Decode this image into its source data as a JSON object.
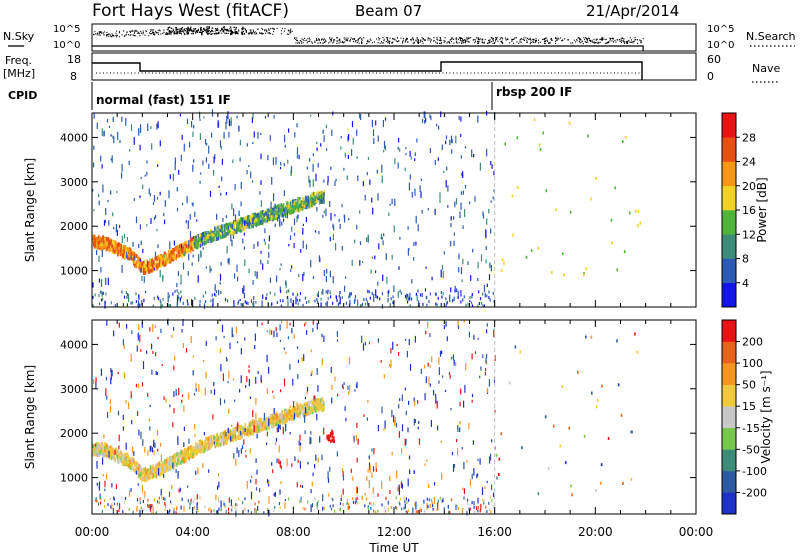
{
  "header": {
    "title": "Fort Hays West (fitACF)",
    "beam": "Beam 07",
    "date": "21/Apr/2014"
  },
  "top_panels": {
    "nsky": {
      "label": "N.Sky",
      "right_label": "N.Search",
      "ticks_left": [
        "10^5",
        "10^0"
      ],
      "ticks_right": [
        "10^5",
        "10^0"
      ]
    },
    "freq": {
      "label_line1": "Freq.",
      "label_line2": "[MHz]",
      "right_label": "Nave",
      "ticks_left": [
        "18",
        "8"
      ],
      "ticks_right": [
        "60",
        "0"
      ]
    },
    "cpid": {
      "label": "CPID",
      "modes": [
        {
          "name": "normal (fast) 151 IF",
          "start_hour": 0
        },
        {
          "name": "rbsp 200 IF",
          "start_hour": 16
        }
      ]
    }
  },
  "chart_data": [
    {
      "type": "heatmap",
      "name": "power",
      "ylabel": "Slant Range [km]",
      "xlabel": "",
      "yticks": [
        1000,
        2000,
        3000,
        4000
      ],
      "ylim": [
        180,
        4550
      ],
      "xlim": [
        0,
        24
      ],
      "colorbar": {
        "label": "Power [dB]",
        "ticks": [
          "4",
          "8",
          "12",
          "16",
          "20",
          "24",
          "28"
        ],
        "colors": [
          "#1414e6",
          "#2d5ab4",
          "#3c8c78",
          "#50b43c",
          "#f0d228",
          "#f59614",
          "#e65014",
          "#e61414"
        ]
      },
      "echo_band": [
        [
          0,
          1650
        ],
        [
          0.5,
          1620
        ],
        [
          1,
          1480
        ],
        [
          1.5,
          1350
        ],
        [
          2,
          1050
        ],
        [
          2.5,
          1150
        ],
        [
          3,
          1300
        ],
        [
          3.5,
          1450
        ],
        [
          4,
          1600
        ],
        [
          4.5,
          1750
        ],
        [
          5,
          1850
        ],
        [
          5.5,
          1950
        ],
        [
          6,
          2050
        ],
        [
          6.5,
          2150
        ],
        [
          7,
          2250
        ],
        [
          7.5,
          2350
        ],
        [
          8,
          2450
        ],
        [
          8.5,
          2550
        ],
        [
          9,
          2650
        ]
      ]
    },
    {
      "type": "heatmap",
      "name": "velocity",
      "ylabel": "Slant Range [km]",
      "xlabel": "Time UT",
      "yticks": [
        1000,
        2000,
        3000,
        4000
      ],
      "ylim": [
        180,
        4550
      ],
      "xlim": [
        0,
        24
      ],
      "xticks": [
        "00:00",
        "04:00",
        "08:00",
        "12:00",
        "16:00",
        "20:00",
        "00:00"
      ],
      "colorbar": {
        "label": "Velocity [m s⁻¹]",
        "ticks": [
          "200",
          "100",
          "50",
          "15",
          "-15",
          "-50",
          "-100",
          "-200"
        ],
        "colors": [
          "#1e32c8",
          "#2d5aa0",
          "#3c8c78",
          "#78c850",
          "#c8c8c8",
          "#f0c83c",
          "#f5961e",
          "#e6641e",
          "#e61414"
        ]
      }
    }
  ]
}
